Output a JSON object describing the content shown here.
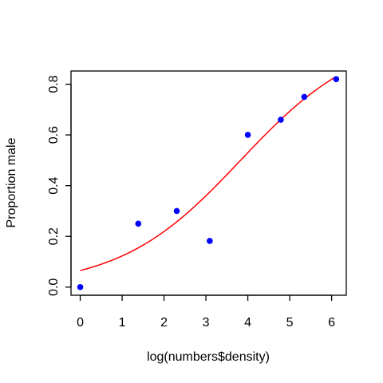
{
  "chart_data": {
    "type": "scatter",
    "title": "",
    "xlabel": "log(numbers$density)",
    "ylabel": "Proportion male",
    "xlim": [
      -0.22,
      6.35
    ],
    "ylim": [
      -0.032,
      0.852
    ],
    "x_ticks": [
      0,
      1,
      2,
      3,
      4,
      5,
      6
    ],
    "x_tick_labels": [
      "0",
      "1",
      "2",
      "3",
      "4",
      "5",
      "6"
    ],
    "y_ticks": [
      0.0,
      0.2,
      0.4,
      0.6,
      0.8
    ],
    "y_tick_labels": [
      "0.0",
      "0.2",
      "0.4",
      "0.6",
      "0.8"
    ],
    "grid": false,
    "points": {
      "color": "#0000ff",
      "x": [
        0.0,
        1.386,
        2.303,
        3.091,
        4.0,
        4.787,
        5.347,
        6.109
      ],
      "y": [
        0.0,
        0.25,
        0.3,
        0.182,
        0.6,
        0.66,
        0.75,
        0.82
      ]
    },
    "fit_line": {
      "color": "#ff0000",
      "type": "logistic",
      "intercept": -2.66,
      "slope": 0.695,
      "x_range": [
        0.0,
        6.109
      ]
    }
  }
}
